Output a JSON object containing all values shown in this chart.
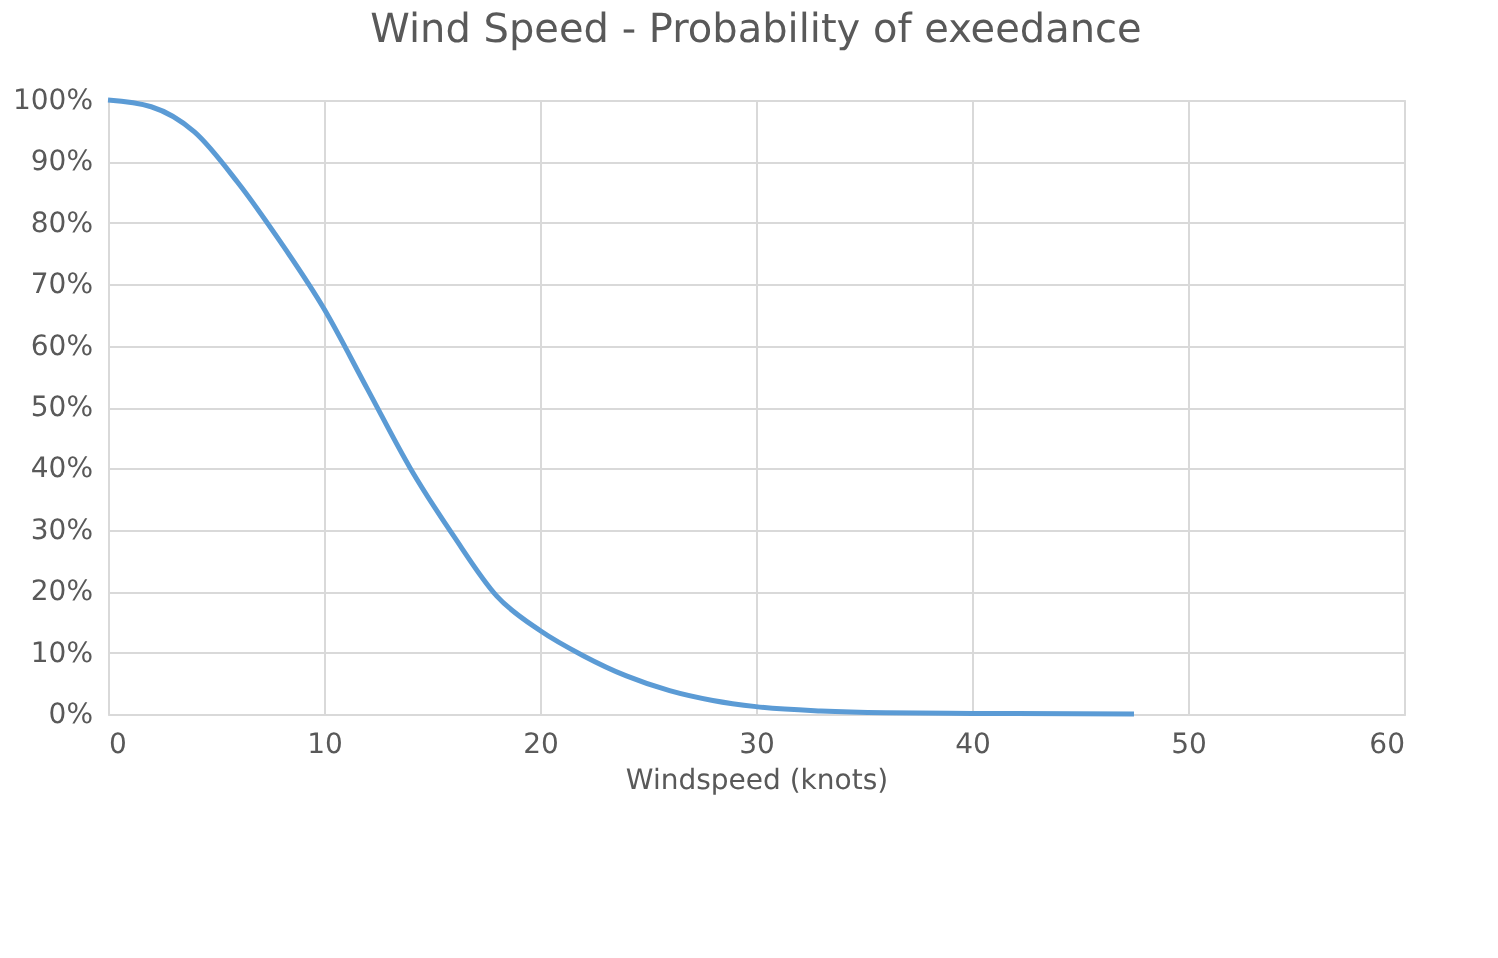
{
  "chart_data": {
    "type": "line",
    "title": "Wind Speed - Probability of exeedance",
    "xlabel": "Windspeed (knots)",
    "xlim": [
      0,
      60
    ],
    "xticks": [
      0,
      10,
      20,
      30,
      40,
      50,
      60
    ],
    "ylim": [
      0,
      100
    ],
    "yticks": [
      {
        "value": 0,
        "label": "0%"
      },
      {
        "value": 10,
        "label": "10%"
      },
      {
        "value": 20,
        "label": "20%"
      },
      {
        "value": 30,
        "label": "30%"
      },
      {
        "value": 40,
        "label": "40%"
      },
      {
        "value": 50,
        "label": "50%"
      },
      {
        "value": 60,
        "label": "60%"
      },
      {
        "value": 70,
        "label": "70%"
      },
      {
        "value": 80,
        "label": "80%"
      },
      {
        "value": 90,
        "label": "90%"
      },
      {
        "value": 100,
        "label": "100%"
      }
    ],
    "grid": true,
    "legend": false,
    "x": [
      0,
      2,
      4,
      6,
      8,
      10,
      12,
      14,
      16,
      18,
      20,
      22,
      24,
      26,
      28,
      30,
      33,
      36,
      40,
      47.5
    ],
    "series": [
      {
        "color": "#5b9bd5",
        "values": [
          100,
          98.9,
          94.8,
          86.6,
          76.8,
          66,
          53,
          40,
          29,
          19.2,
          13.6,
          9.5,
          6.2,
          3.8,
          2.2,
          1.2,
          0.5,
          0.2,
          0.1,
          0
        ]
      }
    ]
  }
}
